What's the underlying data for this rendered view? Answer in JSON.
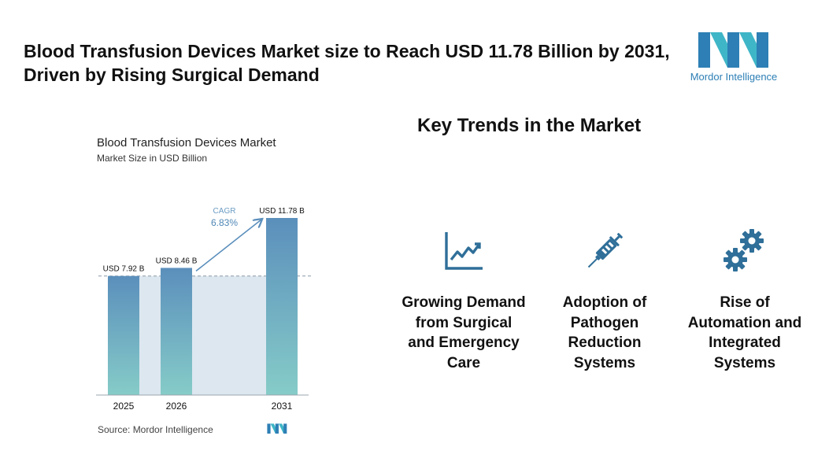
{
  "headline": "Blood Transfusion Devices Market size to Reach USD 11.78 Billion by 2031, Driven by Rising Surgical Demand",
  "brand": {
    "name": "Mordor Intelligence",
    "color": "#2d7fb5",
    "accent": "#3fb6c7"
  },
  "chart_data": {
    "type": "bar",
    "title": "Blood Transfusion Devices Market",
    "subtitle": "Market Size in USD Billion",
    "categories": [
      "2025",
      "2026",
      "2031"
    ],
    "values": [
      7.92,
      8.46,
      11.78
    ],
    "data_labels": [
      "USD 7.92 B",
      "USD 8.46 B",
      "USD 11.78 B"
    ],
    "cagr_label": "CAGR",
    "cagr_value": "6.83%",
    "ylim": [
      0,
      12
    ],
    "xlabel": "",
    "ylabel": "",
    "grid": false,
    "bar_color_top": "#5b8fbc",
    "bar_color_bottom": "#86ccc8"
  },
  "source": "Source: Mordor Intelligence",
  "trends": {
    "title": "Key Trends in the Market",
    "icon_color": "#2f6f99",
    "items": [
      {
        "icon": "growth-chart-icon",
        "label": "Growing Demand from Surgical and Emergency Care"
      },
      {
        "icon": "syringe-icon",
        "label": "Adoption of Pathogen Reduction Systems"
      },
      {
        "icon": "gears-icon",
        "label": "Rise of Automation and Integrated Systems"
      }
    ]
  }
}
